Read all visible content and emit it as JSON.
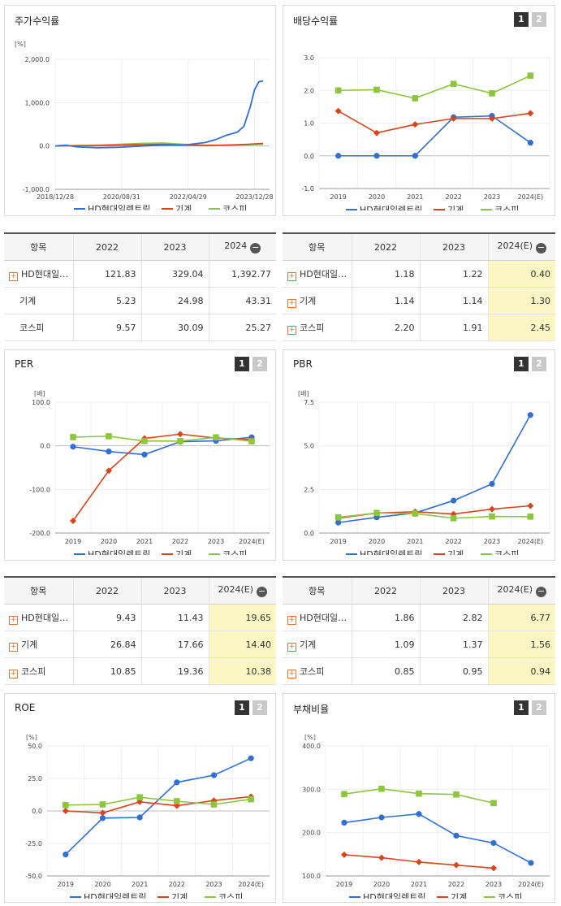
{
  "colors": {
    "company": "#2f6fd6",
    "sector": "#d9441a",
    "kospi": "#8cc63f"
  },
  "legend": {
    "company": "HD현대일렉트릭",
    "sector": "기계",
    "kospi": "코스피"
  },
  "charts": {
    "stock": {
      "title": "주가수익률",
      "unit": "[%]",
      "yticks": [
        "2,000.0",
        "1,000.0",
        "0.0",
        "-1,000.0"
      ],
      "xticks": [
        "2018/12/28",
        "2020/08/31",
        "2022/04/29",
        "2023/12/28"
      ]
    },
    "dividend": {
      "title": "배당수익률",
      "unit": "",
      "yticks": [
        "3.0",
        "2.0",
        "1.0",
        "0.0",
        "-1.0"
      ],
      "xticks": [
        "2019",
        "2020",
        "2021",
        "2022",
        "2023",
        "2024(E)"
      ],
      "pages": [
        "1",
        "2"
      ]
    },
    "per": {
      "title": "PER",
      "unit": "[배]",
      "yticks": [
        "100.0",
        "0.0",
        "-100.0",
        "-200.0"
      ],
      "xticks": [
        "2019",
        "2020",
        "2021",
        "2022",
        "2023",
        "2024(E)"
      ],
      "pages": [
        "1",
        "2"
      ]
    },
    "pbr": {
      "title": "PBR",
      "unit": "[배]",
      "yticks": [
        "7.5",
        "5.0",
        "2.5",
        "0.0"
      ],
      "xticks": [
        "2019",
        "2020",
        "2021",
        "2022",
        "2023",
        "2024(E)"
      ],
      "pages": [
        "1",
        "2"
      ]
    },
    "roe": {
      "title": "ROE",
      "unit": "[%]",
      "yticks": [
        "50.0",
        "25.0",
        "0.0",
        "-25.0",
        "-50.0"
      ],
      "xticks": [
        "2019",
        "2020",
        "2021",
        "2022",
        "2023",
        "2024(E)"
      ],
      "pages": [
        "1",
        "2"
      ]
    },
    "debt": {
      "title": "부채비율",
      "unit": "[%]",
      "yticks": [
        "400.0",
        "300.0",
        "200.0",
        "100.0"
      ],
      "xticks": [
        "2019",
        "2020",
        "2021",
        "2022",
        "2023",
        "2024(E)"
      ],
      "pages": [
        "1",
        "2"
      ]
    }
  },
  "tables": {
    "stock": {
      "header": [
        "항목",
        "2022",
        "2023",
        "2024"
      ],
      "rows": [
        {
          "name": "HD현대일렉트릭",
          "values": [
            "121.83",
            "329.04",
            "1,392.77"
          ],
          "expand": true
        },
        {
          "name": "기계",
          "values": [
            "5.23",
            "24.98",
            "43.31"
          ],
          "expand": false
        },
        {
          "name": "코스피",
          "values": [
            "9.57",
            "30.09",
            "25.27"
          ],
          "expand": false
        }
      ]
    },
    "dividend": {
      "header": [
        "항목",
        "2022",
        "2023",
        "2024(E)"
      ],
      "rows": [
        {
          "name": "HD현대일렉트릭",
          "values": [
            "1.18",
            "1.22",
            "0.40"
          ],
          "expand": true
        },
        {
          "name": "기계",
          "values": [
            "1.14",
            "1.14",
            "1.30"
          ],
          "expand": true
        },
        {
          "name": "코스피",
          "values": [
            "2.20",
            "1.91",
            "2.45"
          ],
          "expand": true
        }
      ]
    },
    "per": {
      "header": [
        "항목",
        "2022",
        "2023",
        "2024(E)"
      ],
      "rows": [
        {
          "name": "HD현대일렉트릭",
          "values": [
            "9.43",
            "11.43",
            "19.65"
          ],
          "expand": true
        },
        {
          "name": "기계",
          "values": [
            "26.84",
            "17.66",
            "14.40"
          ],
          "expand": true
        },
        {
          "name": "코스피",
          "values": [
            "10.85",
            "19.36",
            "10.38"
          ],
          "expand": true
        }
      ]
    },
    "pbr": {
      "header": [
        "항목",
        "2022",
        "2023",
        "2024(E)"
      ],
      "rows": [
        {
          "name": "HD현대일렉트릭",
          "values": [
            "1.86",
            "2.82",
            "6.77"
          ],
          "expand": true
        },
        {
          "name": "기계",
          "values": [
            "1.09",
            "1.37",
            "1.56"
          ],
          "expand": true
        },
        {
          "name": "코스피",
          "values": [
            "0.85",
            "0.95",
            "0.94"
          ],
          "expand": true
        }
      ]
    }
  },
  "chart_data": [
    {
      "type": "line",
      "id": "stock",
      "title": "주가수익률",
      "ylabel": "[%]",
      "ylim": [
        -1000,
        2000
      ],
      "x": [
        "2018/12/28",
        "2020/08/31",
        "2022/04/29",
        "2023/12/28"
      ],
      "series": [
        {
          "name": "HD현대일렉트릭",
          "values": [
            [
              0,
              0
            ],
            [
              0.05,
              20
            ],
            [
              0.1,
              -20
            ],
            [
              0.2,
              -40
            ],
            [
              0.3,
              -30
            ],
            [
              0.4,
              0
            ],
            [
              0.5,
              20
            ],
            [
              0.6,
              20
            ],
            [
              0.7,
              80
            ],
            [
              0.75,
              150
            ],
            [
              0.8,
              250
            ],
            [
              0.85,
              320
            ],
            [
              0.88,
              450
            ],
            [
              0.91,
              900
            ],
            [
              0.93,
              1300
            ],
            [
              0.95,
              1480
            ],
            [
              0.97,
              1500
            ]
          ]
        },
        {
          "name": "기계",
          "values": [
            [
              0,
              0
            ],
            [
              0.1,
              10
            ],
            [
              0.2,
              10
            ],
            [
              0.3,
              20
            ],
            [
              0.4,
              30
            ],
            [
              0.5,
              40
            ],
            [
              0.6,
              20
            ],
            [
              0.7,
              10
            ],
            [
              0.8,
              20
            ],
            [
              0.9,
              40
            ],
            [
              0.97,
              60
            ]
          ]
        },
        {
          "name": "코스피",
          "values": [
            [
              0,
              0
            ],
            [
              0.1,
              10
            ],
            [
              0.2,
              20
            ],
            [
              0.3,
              40
            ],
            [
              0.4,
              60
            ],
            [
              0.5,
              70
            ],
            [
              0.6,
              40
            ],
            [
              0.7,
              20
            ],
            [
              0.8,
              20
            ],
            [
              0.9,
              30
            ],
            [
              0.97,
              40
            ]
          ]
        }
      ]
    },
    {
      "type": "line",
      "id": "dividend",
      "title": "배당수익률",
      "ylim": [
        -1,
        3
      ],
      "x": [
        "2019",
        "2020",
        "2021",
        "2022",
        "2023",
        "2024(E)"
      ],
      "series": [
        {
          "name": "HD현대일렉트릭",
          "values": [
            0,
            0,
            0,
            1.18,
            1.22,
            0.4
          ]
        },
        {
          "name": "기계",
          "values": [
            1.37,
            0.7,
            0.96,
            1.14,
            1.14,
            1.3
          ]
        },
        {
          "name": "코스피",
          "values": [
            2.0,
            2.02,
            1.76,
            2.2,
            1.91,
            2.45
          ]
        }
      ]
    },
    {
      "type": "line",
      "id": "per",
      "title": "PER",
      "ylabel": "[배]",
      "ylim": [
        -200,
        100
      ],
      "x": [
        "2019",
        "2020",
        "2021",
        "2022",
        "2023",
        "2024(E)"
      ],
      "series": [
        {
          "name": "HD현대일렉트릭",
          "values": [
            -2,
            -13,
            -20,
            9.43,
            11.43,
            19.65
          ]
        },
        {
          "name": "기계",
          "values": [
            -172,
            -57,
            17,
            26.84,
            17.66,
            14.4
          ]
        },
        {
          "name": "코스피",
          "values": [
            20,
            22,
            11,
            10.85,
            19.36,
            10.38
          ]
        }
      ]
    },
    {
      "type": "line",
      "id": "pbr",
      "title": "PBR",
      "ylabel": "[배]",
      "ylim": [
        0,
        7.5
      ],
      "x": [
        "2019",
        "2020",
        "2021",
        "2022",
        "2023",
        "2024(E)"
      ],
      "series": [
        {
          "name": "HD현대일렉트릭",
          "values": [
            0.6,
            0.9,
            1.15,
            1.86,
            2.82,
            6.77
          ]
        },
        {
          "name": "기계",
          "values": [
            0.85,
            1.15,
            1.22,
            1.09,
            1.37,
            1.56
          ]
        },
        {
          "name": "코스피",
          "values": [
            0.9,
            1.15,
            1.12,
            0.85,
            0.95,
            0.94
          ]
        }
      ]
    },
    {
      "type": "line",
      "id": "roe",
      "title": "ROE",
      "ylabel": "[%]",
      "ylim": [
        -50,
        50
      ],
      "x": [
        "2019",
        "2020",
        "2021",
        "2022",
        "2023",
        "2024(E)"
      ],
      "series": [
        {
          "name": "HD현대일렉트릭",
          "values": [
            -33.5,
            -5.5,
            -5,
            22,
            27.5,
            40.5
          ]
        },
        {
          "name": "기계",
          "values": [
            0,
            -1.5,
            7,
            4,
            8,
            11
          ]
        },
        {
          "name": "코스피",
          "values": [
            4.5,
            5,
            10.5,
            7.5,
            5,
            9
          ]
        }
      ]
    },
    {
      "type": "line",
      "id": "debt",
      "title": "부채비율",
      "ylabel": "[%]",
      "ylim": [
        100,
        400
      ],
      "x": [
        "2019",
        "2020",
        "2021",
        "2022",
        "2023",
        "2024(E)"
      ],
      "series": [
        {
          "name": "HD현대일렉트릭",
          "values": [
            223,
            235,
            243,
            193,
            176,
            130
          ]
        },
        {
          "name": "기계",
          "values": [
            149,
            142,
            132,
            125,
            118,
            null
          ]
        },
        {
          "name": "코스피",
          "values": [
            289,
            301,
            290,
            288,
            268,
            null
          ]
        }
      ]
    }
  ]
}
